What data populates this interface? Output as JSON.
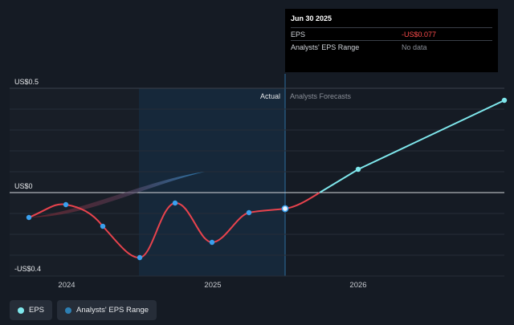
{
  "chart_data": {
    "type": "line",
    "x_ticks": [
      "2024",
      "2025",
      "2026"
    ],
    "y_ticks": [
      "US$0.5",
      "US$0",
      "-US$0.4"
    ],
    "ylim": [
      -0.4,
      0.5
    ],
    "region_labels": {
      "actual": "Actual",
      "forecast": "Analysts Forecasts"
    },
    "series": [
      {
        "name": "EPS",
        "color": "#e8434d",
        "points": [
          {
            "x": "2023-09-30",
            "y": -0.12
          },
          {
            "x": "2023-12-31",
            "y": -0.06
          },
          {
            "x": "2024-03-31",
            "y": -0.16
          },
          {
            "x": "2024-06-30",
            "y": -0.32
          },
          {
            "x": "2024-09-30",
            "y": -0.05
          },
          {
            "x": "2024-12-31",
            "y": -0.25
          },
          {
            "x": "2025-03-31",
            "y": -0.1
          },
          {
            "x": "2025-06-30",
            "y": -0.077
          }
        ]
      },
      {
        "name": "EPS forecast",
        "color": "#7fe7ec",
        "points": [
          {
            "x": "2025-09-30",
            "y": 0.0
          },
          {
            "x": "2025-12-31",
            "y": 0.11
          },
          {
            "x": "2026-06-30",
            "y": 0.44
          }
        ]
      }
    ],
    "analyst_range_band": [
      {
        "x": "2023-09-30",
        "low": -0.12,
        "high": -0.12
      },
      {
        "x": "2024-09-30",
        "low": 0.0,
        "high": 0.05
      },
      {
        "x": "2024-12-31",
        "low": 0.09,
        "high": 0.09
      }
    ]
  },
  "tooltip": {
    "date": "Jun 30 2025",
    "rows": [
      {
        "label": "EPS",
        "value": "-US$0.077"
      },
      {
        "label": "Analysts' EPS Range",
        "value": "No data"
      }
    ]
  },
  "legend": [
    {
      "label": "EPS",
      "color": "#7fe7ec"
    },
    {
      "label": "Analysts' EPS Range",
      "color": "#2d7fb3"
    }
  ]
}
